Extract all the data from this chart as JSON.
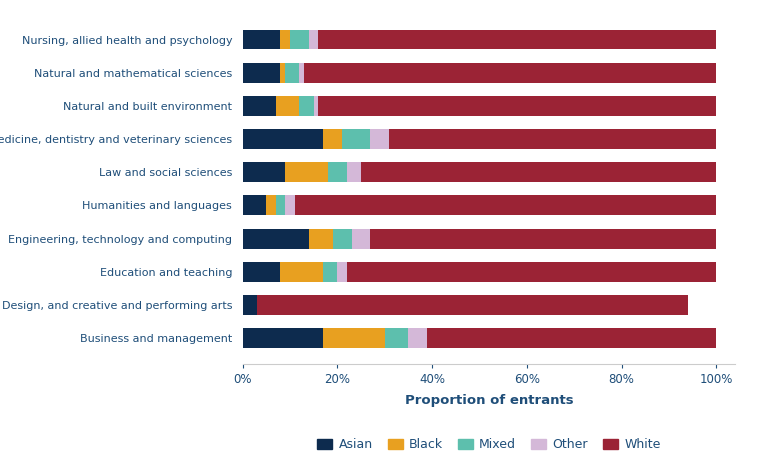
{
  "categories": [
    "Business and management",
    "Design, and creative and performing arts",
    "Education and teaching",
    "Engineering, technology and computing",
    "Humanities and languages",
    "Law and social sciences",
    "Medicine, dentistry and veterinary sciences",
    "Natural and built environment",
    "Natural and mathematical sciences",
    "Nursing, allied health and psychology"
  ],
  "segments": {
    "Asian": [
      17,
      3,
      8,
      14,
      5,
      9,
      17,
      7,
      8,
      8
    ],
    "Black": [
      13,
      0,
      9,
      5,
      2,
      9,
      4,
      5,
      1,
      2
    ],
    "Mixed": [
      5,
      0,
      3,
      4,
      2,
      4,
      6,
      3,
      3,
      4
    ],
    "Other": [
      4,
      0,
      2,
      4,
      2,
      3,
      4,
      1,
      1,
      2
    ],
    "White": [
      61,
      91,
      78,
      73,
      89,
      75,
      69,
      84,
      87,
      84
    ]
  },
  "colors": {
    "Asian": "#0d2b4e",
    "Black": "#e8a020",
    "Mixed": "#5dbfad",
    "Other": "#d4b8d8",
    "White": "#9b2335"
  },
  "xlabel": "Proportion of entrants",
  "xtick_labels": [
    "0%",
    "20%",
    "40%",
    "60%",
    "80%",
    "100%"
  ],
  "xtick_values": [
    0,
    20,
    40,
    60,
    80,
    100
  ],
  "legend_labels": [
    "Asian",
    "Black",
    "Mixed",
    "Other",
    "White"
  ],
  "text_color": "#1f4e79",
  "bar_height": 0.6,
  "figwidth": 7.58,
  "figheight": 4.55,
  "dpi": 100
}
